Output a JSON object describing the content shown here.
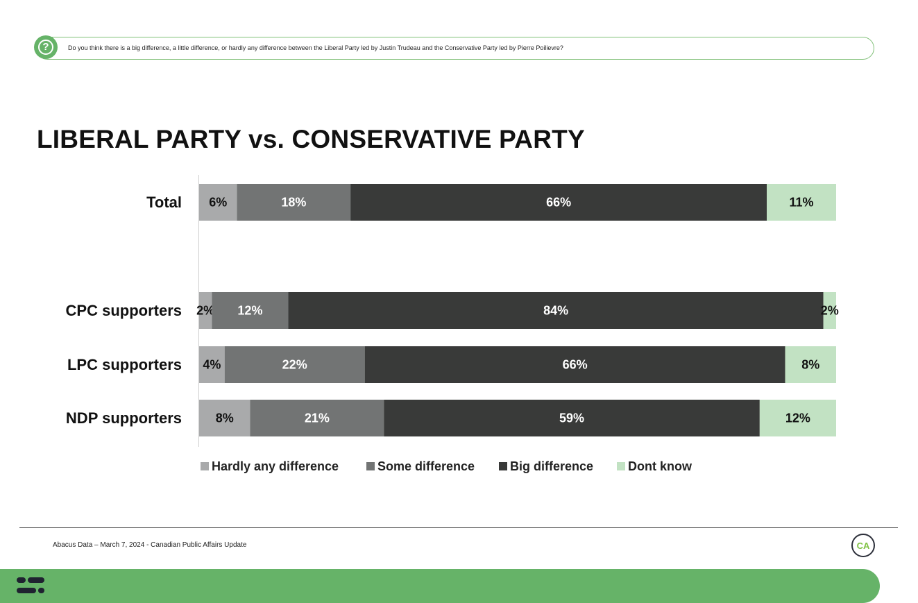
{
  "question": {
    "text": "Do you think there is a big difference, a little difference, or hardly any difference between the Liberal Party led by Justin Trudeau and the Conservative Party led by Pierre Poilievre?",
    "icon": "question-mark-icon"
  },
  "title": "LIBERAL PARTY vs. CONSERVATIVE PARTY",
  "chart_data": {
    "type": "bar",
    "orientation": "horizontal",
    "stacked": true,
    "categories": [
      "Total",
      "CPC supporters",
      "LPC supporters",
      "NDP supporters"
    ],
    "series": [
      {
        "name": "Hardly any difference",
        "color": "#a9aaab",
        "values": [
          6,
          2,
          4,
          8
        ],
        "labels": [
          "6%",
          "2%",
          "4%",
          "8%"
        ]
      },
      {
        "name": "Some difference",
        "color": "#727474",
        "values": [
          18,
          12,
          22,
          21
        ],
        "labels": [
          "18%",
          "12%",
          "22%",
          "21%"
        ]
      },
      {
        "name": "Big difference",
        "color": "#393a39",
        "values": [
          66,
          84,
          66,
          59
        ],
        "labels": [
          "66%",
          "84%",
          "66%",
          "59%"
        ]
      },
      {
        "name": "Dont know",
        "color": "#c2e2c3",
        "values": [
          11,
          2,
          8,
          12
        ],
        "labels": [
          "11%",
          "2%",
          "8%",
          "12%"
        ]
      }
    ],
    "legend_position": "bottom",
    "grid": false
  },
  "footer": {
    "source": "Abacus Data – March 7, 2024 - Canadian Public Affairs Update",
    "logo_text": "CA"
  }
}
